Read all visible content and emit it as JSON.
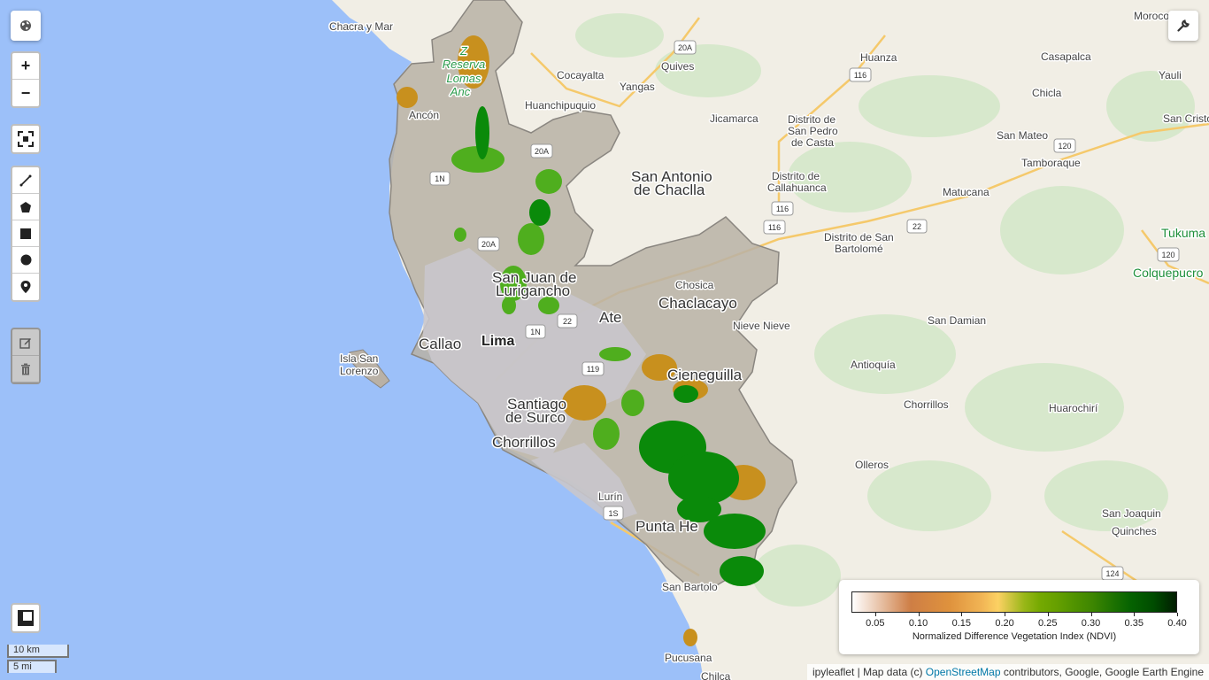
{
  "map": {
    "places": [
      {
        "name": "Chacra y Mar",
        "cls": ""
      },
      {
        "name": "Quives",
        "cls": ""
      },
      {
        "name": "Huanza",
        "cls": ""
      },
      {
        "name": "Casapalca",
        "cls": ""
      },
      {
        "name": "Morococha",
        "cls": ""
      },
      {
        "name": "Cocayalta",
        "cls": ""
      },
      {
        "name": "Yangas",
        "cls": ""
      },
      {
        "name": "Yauli",
        "cls": ""
      },
      {
        "name": "Chicla",
        "cls": ""
      },
      {
        "name": "Huanchipuquio",
        "cls": ""
      },
      {
        "name": "Jicamarca",
        "cls": ""
      },
      {
        "name": "Distrito de",
        "cls": ""
      },
      {
        "name": "San Pedro",
        "cls": ""
      },
      {
        "name": "de Casta",
        "cls": ""
      },
      {
        "name": "San Cristo",
        "cls": ""
      },
      {
        "name": "San Mateo",
        "cls": ""
      },
      {
        "name": "Tamboraque",
        "cls": ""
      },
      {
        "name": "Ancón",
        "cls": ""
      },
      {
        "name": "San Antonio",
        "cls": "big"
      },
      {
        "name": "de Chaclla",
        "cls": "big"
      },
      {
        "name": "Distrito de",
        "cls": ""
      },
      {
        "name": "Callahuanca",
        "cls": ""
      },
      {
        "name": "Matucana",
        "cls": ""
      },
      {
        "name": "Tukuma",
        "cls": "green"
      },
      {
        "name": "Distrito de San",
        "cls": ""
      },
      {
        "name": "Bartolomé",
        "cls": ""
      },
      {
        "name": "Colquepucro",
        "cls": "green"
      },
      {
        "name": "San Juan de",
        "cls": "big"
      },
      {
        "name": "Lurigancho",
        "cls": "big"
      },
      {
        "name": "Chosica",
        "cls": ""
      },
      {
        "name": "Chaclacayo",
        "cls": "big"
      },
      {
        "name": "Ate",
        "cls": "big"
      },
      {
        "name": "Nieve Nieve",
        "cls": ""
      },
      {
        "name": "San Damian",
        "cls": ""
      },
      {
        "name": "Lima",
        "cls": "bold"
      },
      {
        "name": "Callao",
        "cls": "big"
      },
      {
        "name": "Isla San",
        "cls": ""
      },
      {
        "name": "Lorenzo",
        "cls": ""
      },
      {
        "name": "Antioquía",
        "cls": ""
      },
      {
        "name": "Cieneguilla",
        "cls": "big"
      },
      {
        "name": "Santiago",
        "cls": "big"
      },
      {
        "name": "de Surco",
        "cls": "big"
      },
      {
        "name": "Chorrillos",
        "cls": ""
      },
      {
        "name": "Huarochirí",
        "cls": ""
      },
      {
        "name": "Chorrillos",
        "cls": "big"
      },
      {
        "name": "Olleros",
        "cls": ""
      },
      {
        "name": "Lurín",
        "cls": ""
      },
      {
        "name": "San Joaquin",
        "cls": ""
      },
      {
        "name": "Quinches",
        "cls": ""
      },
      {
        "name": "Punta He",
        "cls": "big"
      },
      {
        "name": "San Bartolo",
        "cls": ""
      },
      {
        "name": "Pucusana",
        "cls": ""
      },
      {
        "name": "Chilca",
        "cls": ""
      }
    ],
    "reserve": [
      "Z",
      "Reserva",
      "Lomas",
      "Anc"
    ],
    "shields": [
      "20A",
      "116",
      "1N",
      "20A",
      "120",
      "116",
      "116",
      "22",
      "120",
      "20A",
      "22",
      "1N",
      "119",
      "1S",
      "124"
    ]
  },
  "controls": {
    "globe_icon": "globe-icon",
    "zoom_in": "+",
    "zoom_out": "−",
    "wrench_icon": "wrench-icon"
  },
  "scale": {
    "km": "10 km",
    "mi": "5 mi"
  },
  "legend": {
    "ticks": [
      "0.05",
      "0.10",
      "0.15",
      "0.20",
      "0.25",
      "0.30",
      "0.35",
      "0.40"
    ],
    "title": "Normalized Difference Vegetation Index (NDVI)"
  },
  "attribution": {
    "prefix": "ipyleaflet | Map data (c) ",
    "link": "OpenStreetMap",
    "suffix": " contributors, Google, Google Earth Engine"
  },
  "colors": {
    "ocean": "#9cc0f9",
    "land": "#f2efe6",
    "region": "#b9b1a6",
    "veg_high": "#0a8a0a",
    "veg_mid": "#4fae1e",
    "veg_low": "#c8901e"
  }
}
